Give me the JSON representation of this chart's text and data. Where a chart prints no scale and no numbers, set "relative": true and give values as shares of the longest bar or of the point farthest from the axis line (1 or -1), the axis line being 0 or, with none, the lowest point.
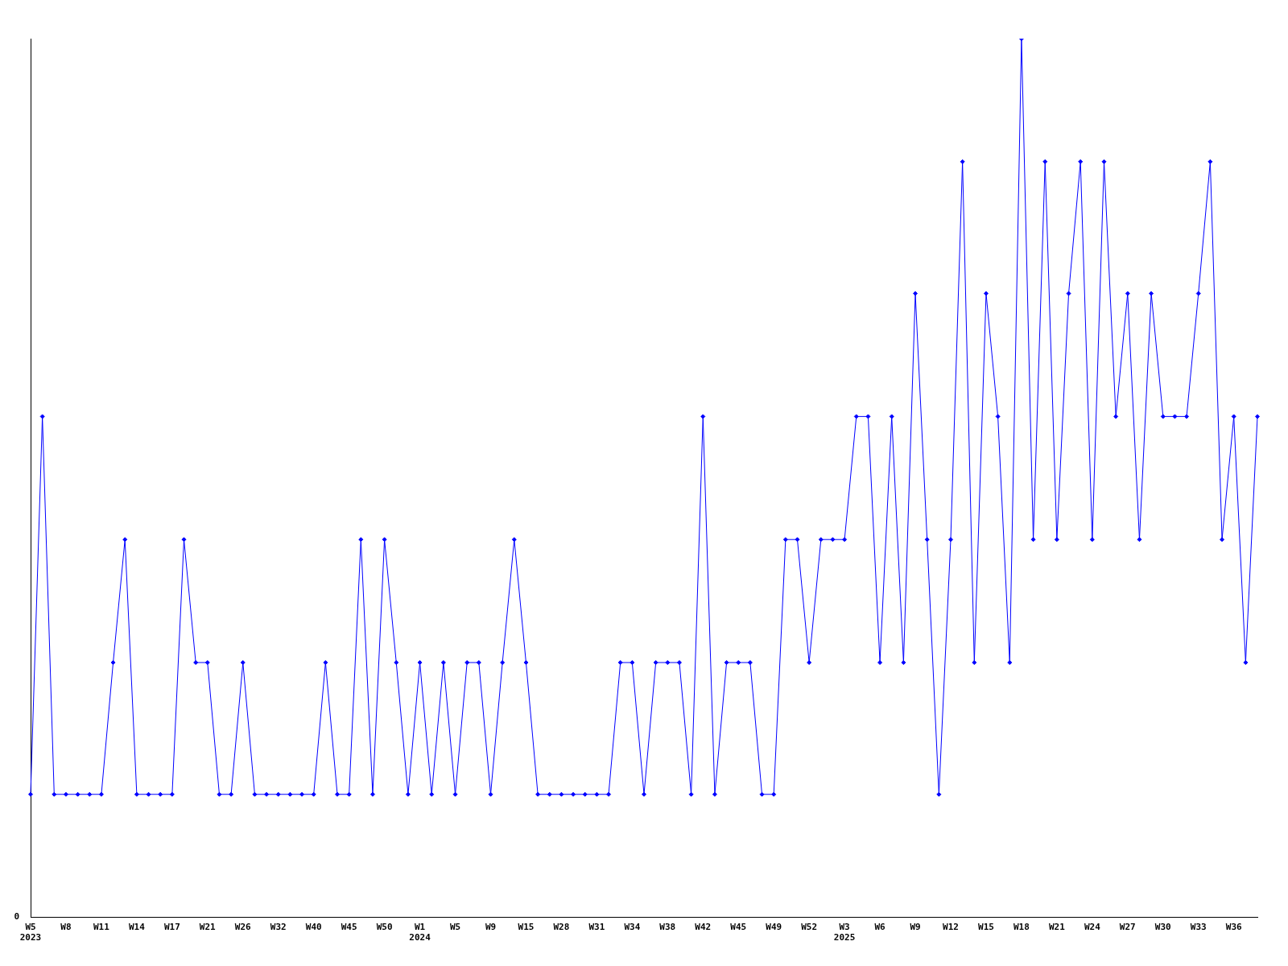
{
  "chart_data": {
    "type": "line",
    "relative": true,
    "grid": false,
    "legend": false,
    "marker": "diamond",
    "line_style": "solid",
    "annotations": [
      "0"
    ],
    "categories": [
      "W5\n2023",
      null,
      null,
      "W8",
      null,
      null,
      "W11",
      null,
      null,
      "W14",
      null,
      null,
      "W17",
      null,
      null,
      "W21",
      null,
      null,
      "W26",
      null,
      null,
      "W32",
      null,
      null,
      "W40",
      null,
      null,
      "W45",
      null,
      null,
      "W50",
      null,
      null,
      "W1\n2024",
      null,
      null,
      "W5",
      null,
      null,
      "W9",
      null,
      null,
      "W15",
      null,
      null,
      "W28",
      null,
      null,
      "W31",
      null,
      null,
      "W34",
      null,
      null,
      "W38",
      null,
      null,
      "W42",
      null,
      null,
      "W45",
      null,
      null,
      "W49",
      null,
      null,
      "W52",
      null,
      null,
      "W3\n2025",
      null,
      null,
      "W6",
      null,
      null,
      "W9",
      null,
      null,
      "W12",
      null,
      null,
      "W15",
      null,
      null,
      "W18",
      null,
      null,
      "W21",
      null,
      null,
      "W24",
      null,
      null,
      "W27",
      null,
      null,
      "W30",
      null,
      null,
      "W33",
      null,
      null,
      "W36",
      null,
      null
    ],
    "series": [
      {
        "color": "#0000ff",
        "values": [
          0.14,
          0.57,
          0.14,
          0.14,
          0.14,
          0.14,
          0.14,
          0.29,
          0.43,
          0.14,
          0.14,
          0.14,
          0.14,
          0.43,
          0.29,
          0.29,
          0.14,
          0.14,
          0.29,
          0.14,
          0.14,
          0.14,
          0.14,
          0.14,
          0.14,
          0.29,
          0.14,
          0.14,
          0.43,
          0.14,
          0.43,
          0.29,
          0.14,
          0.29,
          0.14,
          0.29,
          0.14,
          0.29,
          0.29,
          0.14,
          0.29,
          0.43,
          0.29,
          0.14,
          0.14,
          0.14,
          0.14,
          0.14,
          0.14,
          0.14,
          0.29,
          0.29,
          0.14,
          0.29,
          0.29,
          0.29,
          0.14,
          0.57,
          0.14,
          0.29,
          0.29,
          0.29,
          0.14,
          0.14,
          0.43,
          0.43,
          0.29,
          0.43,
          0.43,
          0.43,
          0.57,
          0.57,
          0.29,
          0.57,
          0.29,
          0.71,
          0.43,
          0.14,
          0.43,
          0.86,
          0.29,
          0.71,
          0.57,
          0.29,
          1,
          0.43,
          0.86,
          0.43,
          0.71,
          0.86,
          0.43,
          0.86,
          0.57,
          0.71,
          0.43,
          0.71,
          0.57,
          0.57,
          0.57,
          0.71,
          0.86,
          0.43,
          0.57,
          0.29,
          0.57
        ]
      }
    ]
  }
}
